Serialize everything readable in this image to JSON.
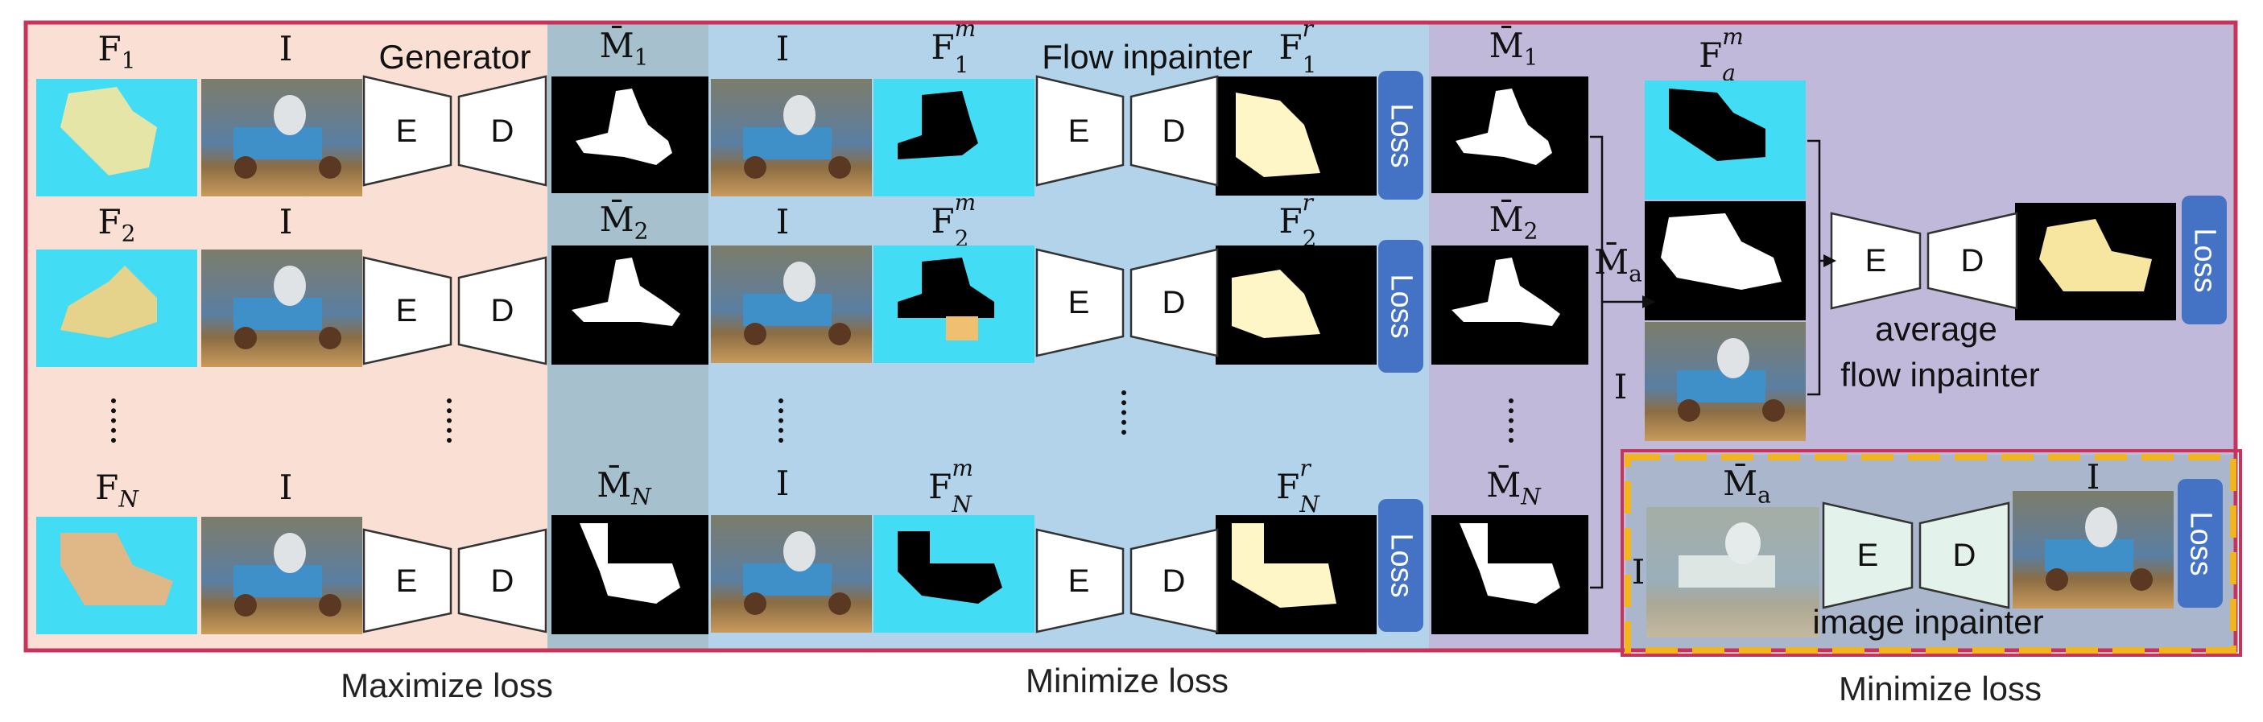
{
  "section_colors": {
    "generator_bg": "#fae0d4",
    "mask_bg": "#a7c0cd",
    "flow_inpainter_bg": "#b3d3ea",
    "average_bg": "#c0b9da",
    "image_inpainter_bg": "#aab6cc",
    "outer_border": "#c8335a",
    "dashed_border": "#f1b51f",
    "loss_box": "#4472c4"
  },
  "labels": {
    "generator": "Generator",
    "flow_inpainter": "Flow inpainter",
    "average_flow_inpainter_1": "average",
    "average_flow_inpainter_2": "flow inpainter",
    "image_inpainter": "image inpainter",
    "loss": "Loss",
    "encoder": "E",
    "decoder": "D",
    "image": "I",
    "M_bar": "M̄",
    "M_bar_a": "M̄a",
    "sub_a": "a"
  },
  "captions": {
    "left": "Maximize loss",
    "middle": "Minimize loss",
    "right": "Minimize loss"
  },
  "rows": [
    {
      "flow": "F",
      "flow_sub": "1",
      "mask_sub": "1",
      "masked_sup": "m",
      "masked_sub": "1",
      "recon_sup": "r",
      "recon_sub": "1"
    },
    {
      "flow": "F",
      "flow_sub": "2",
      "mask_sub": "2",
      "masked_sup": "m",
      "masked_sub": "2",
      "recon_sup": "r",
      "recon_sub": "2"
    },
    {
      "flow": "F",
      "flow_sub": "N",
      "mask_sub": "N",
      "masked_sup": "m",
      "masked_sub": "N",
      "recon_sup": "r",
      "recon_sub": "N"
    }
  ],
  "average_flow_label": {
    "base": "F",
    "sup": "m",
    "sub": "a"
  }
}
